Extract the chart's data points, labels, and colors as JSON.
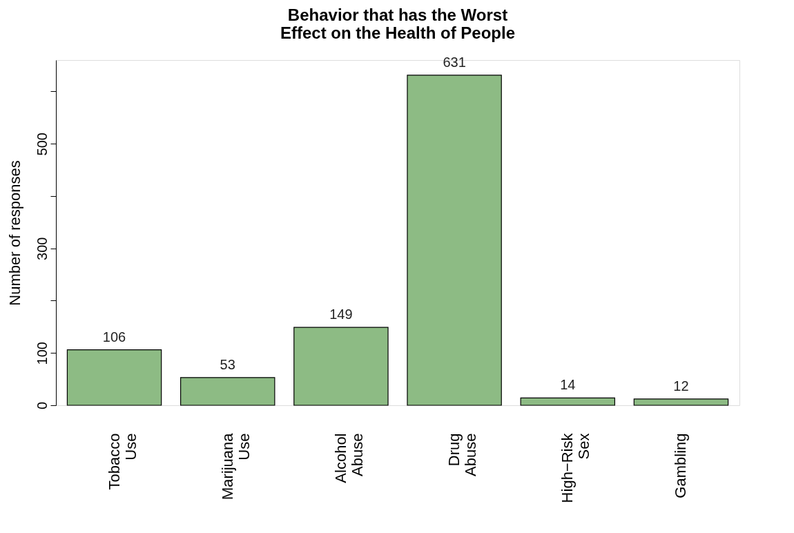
{
  "chart_data": {
    "type": "bar",
    "title": [
      "Behavior that has the Worst",
      "Effect on the Health of People"
    ],
    "ylabel": "Number of responses",
    "categories": [
      "Tobacco Use",
      "Marijuana Use",
      "Alcohol Abuse",
      "Drug Abuse",
      "High−Risk Sex",
      "Gambling"
    ],
    "values": [
      106,
      53,
      149,
      631,
      14,
      12
    ],
    "color": "#8dbb84",
    "ylim": [
      0,
      660
    ],
    "yticks": [
      0,
      100,
      {
        "value": 200,
        "label": null
      },
      300,
      {
        "value": 400,
        "label": null
      },
      500,
      {
        "value": 600,
        "label": null
      }
    ],
    "grid": false,
    "data_labels": true
  }
}
